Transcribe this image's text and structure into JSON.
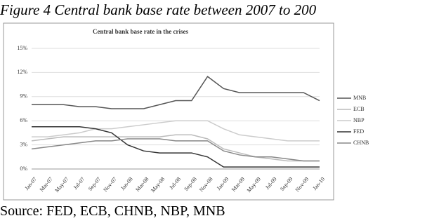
{
  "heading": "Figure 4 Central bank base rate between 2007 to 200",
  "source": "Source: FED, ECB, CHNB, NBP, MNB",
  "chart_data": {
    "type": "line",
    "title": "Central bank base rate in the crises",
    "categories": [
      "Jan-07",
      "Mar-07",
      "May-07",
      "Jul-07",
      "Sep-07",
      "Nov-07",
      "Jan-08",
      "Mar-08",
      "May-08",
      "Jul-08",
      "Sep-08",
      "Nov-08",
      "Jan-09",
      "Mar-09",
      "May-09",
      "Jul-09",
      "Sep-09",
      "Nov-09",
      "Jan-10"
    ],
    "series": [
      {
        "name": "MNB",
        "color": "#555555",
        "values": [
          8,
          8,
          8,
          7.75,
          7.75,
          7.5,
          7.5,
          7.5,
          8,
          8.5,
          8.5,
          11.5,
          10,
          9.5,
          9.5,
          9.5,
          9.5,
          9.5,
          8.5
        ]
      },
      {
        "name": "ECB",
        "color": "#bbbbbb",
        "values": [
          3.5,
          3.75,
          4,
          4,
          4,
          4,
          4,
          4,
          4,
          4.25,
          4.25,
          3.75,
          2.5,
          2,
          1.5,
          1.25,
          1,
          1,
          1
        ]
      },
      {
        "name": "NBP",
        "color": "#cccccc",
        "values": [
          4,
          4,
          4.25,
          4.5,
          5,
          5,
          5.25,
          5.5,
          5.75,
          6,
          6,
          6,
          5,
          4.25,
          4,
          3.75,
          3.5,
          3.5,
          3.5
        ]
      },
      {
        "name": "FED",
        "color": "#333333",
        "values": [
          5.25,
          5.25,
          5.25,
          5.25,
          5,
          4.5,
          3,
          2.25,
          2,
          2,
          2,
          1.5,
          0.25,
          0.25,
          0.25,
          0.25,
          0.25,
          0.25,
          0.25
        ]
      },
      {
        "name": "CHNB",
        "color": "#888888",
        "values": [
          2.5,
          2.75,
          3,
          3.25,
          3.5,
          3.5,
          3.75,
          3.75,
          3.75,
          3.5,
          3.5,
          3.5,
          2.25,
          1.75,
          1.5,
          1.5,
          1.25,
          1,
          1
        ]
      }
    ],
    "ylim": [
      0,
      15
    ],
    "yticks": [
      {
        "value": 0,
        "label": "0%"
      },
      {
        "value": 3,
        "label": "3%"
      },
      {
        "value": 6,
        "label": "6%"
      },
      {
        "value": 9,
        "label": "9%"
      },
      {
        "value": 12,
        "label": "12%"
      },
      {
        "value": 15,
        "label": "15%"
      }
    ],
    "grid": true,
    "legend": "right"
  }
}
